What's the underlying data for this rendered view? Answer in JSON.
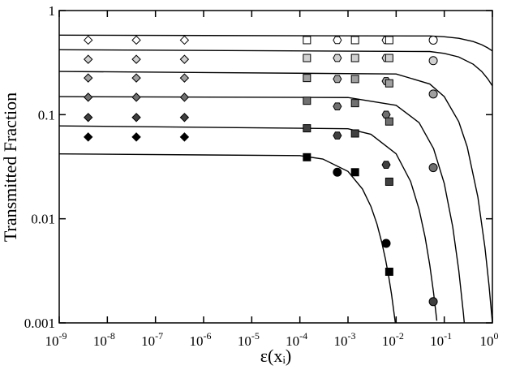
{
  "chart_data": {
    "type": "scatter",
    "x_label": "ε(xᵢ)",
    "y_label": "Transmitted Fraction",
    "log_x": true,
    "log_y": true,
    "xlim": [
      1e-09,
      1
    ],
    "ylim": [
      0.001,
      1
    ],
    "xticks": [
      {
        "value": 1e-09,
        "label": "10",
        "exponent": "-9"
      },
      {
        "value": 1e-08,
        "label": "10",
        "exponent": "-8"
      },
      {
        "value": 1e-07,
        "label": "10",
        "exponent": "-7"
      },
      {
        "value": 1e-06,
        "label": "10",
        "exponent": "-6"
      },
      {
        "value": 1e-05,
        "label": "10",
        "exponent": "-5"
      },
      {
        "value": 0.0001,
        "label": "10",
        "exponent": "-4"
      },
      {
        "value": 0.001,
        "label": "10",
        "exponent": "-3"
      },
      {
        "value": 0.01,
        "label": "10",
        "exponent": "-2"
      },
      {
        "value": 0.1,
        "label": "10",
        "exponent": "-1"
      },
      {
        "value": 1,
        "label": "10",
        "exponent": "0"
      }
    ],
    "yticks": [
      0.001,
      0.01,
      0.1,
      1
    ],
    "series": [
      {
        "color": "#ffffff",
        "x": [
          4e-09,
          4e-08,
          4e-07,
          0.00014,
          0.0006,
          0.0014,
          0.0062,
          0.0072,
          0.059
        ],
        "values": [
          0.52,
          0.52,
          0.52,
          0.52,
          0.52,
          0.52,
          0.52,
          0.52,
          0.52
        ],
        "markers": [
          "diamond",
          "diamond",
          "diamond",
          "square",
          "hexagon",
          "square",
          "hexagon",
          "square",
          "circle"
        ]
      },
      {
        "color": "#d0d0d0",
        "x": [
          4e-09,
          4e-08,
          4e-07,
          0.00014,
          0.0006,
          0.0014,
          0.0062,
          0.0072,
          0.059
        ],
        "values": [
          0.34,
          0.34,
          0.34,
          0.35,
          0.35,
          0.35,
          0.35,
          0.35,
          0.33
        ],
        "markers": [
          "diamond",
          "diamond",
          "diamond",
          "square",
          "hexagon",
          "square",
          "hexagon",
          "square",
          "circle"
        ]
      },
      {
        "color": "#a0a0a0",
        "x": [
          4e-09,
          4e-08,
          4e-07,
          0.00014,
          0.0006,
          0.0014,
          0.0062,
          0.0072,
          0.059
        ],
        "values": [
          0.225,
          0.225,
          0.225,
          0.225,
          0.22,
          0.22,
          0.21,
          0.2,
          0.158
        ],
        "markers": [
          "diamond",
          "diamond",
          "diamond",
          "square",
          "hexagon",
          "square",
          "hexagon",
          "square",
          "circle"
        ]
      },
      {
        "color": "#707070",
        "x": [
          4e-09,
          4e-08,
          4e-07,
          0.00014,
          0.0006,
          0.0014,
          0.0062,
          0.0072,
          0.059
        ],
        "values": [
          0.147,
          0.147,
          0.147,
          0.136,
          0.12,
          0.129,
          0.1,
          0.086,
          0.031
        ],
        "markers": [
          "diamond",
          "diamond",
          "diamond",
          "square",
          "hexagon",
          "square",
          "hexagon",
          "square",
          "circle"
        ]
      },
      {
        "color": "#404040",
        "x": [
          4e-09,
          4e-08,
          4e-07,
          0.00014,
          0.0006,
          0.0014,
          0.0062,
          0.0072,
          0.059
        ],
        "values": [
          0.094,
          0.094,
          0.094,
          0.074,
          0.063,
          0.066,
          0.033,
          0.0227,
          0.0016
        ],
        "markers": [
          "diamond",
          "diamond",
          "diamond",
          "square",
          "hexagon",
          "square",
          "hexagon",
          "square",
          "circle"
        ]
      },
      {
        "color": "#000000",
        "x": [
          4e-09,
          4e-08,
          4e-07,
          0.00014,
          0.0006,
          0.0014,
          0.0062,
          0.0072
        ],
        "values": [
          0.061,
          0.061,
          0.061,
          0.039,
          0.028,
          0.028,
          0.0058,
          0.0031
        ],
        "markers": [
          "diamond",
          "diamond",
          "diamond",
          "square",
          "circle",
          "square",
          "circle",
          "square"
        ]
      }
    ],
    "fits": [
      {
        "color": "#000000",
        "x": [
          1e-09,
          0.0001,
          0.0003,
          0.001,
          0.002,
          0.003,
          0.004,
          0.005,
          0.006,
          0.007,
          0.008,
          0.0096
        ],
        "values": [
          0.042,
          0.0404,
          0.0375,
          0.0285,
          0.0193,
          0.0131,
          0.0089,
          0.006,
          0.0041,
          0.0028,
          0.0019,
          0.00101
        ]
      },
      {
        "color": "#000000",
        "x": [
          1e-09,
          0.001,
          0.003,
          0.01,
          0.02,
          0.03,
          0.04,
          0.05,
          0.06,
          0.07
        ],
        "values": [
          0.078,
          0.0733,
          0.0648,
          0.0421,
          0.0228,
          0.0123,
          0.00664,
          0.00359,
          0.00194,
          0.00105
        ]
      },
      {
        "color": "#000000",
        "x": [
          1e-09,
          0.001,
          0.01,
          0.03,
          0.06,
          0.1,
          0.15,
          0.2,
          0.25,
          0.26
        ],
        "values": [
          0.149,
          0.146,
          0.123,
          0.0838,
          0.0471,
          0.0218,
          0.00836,
          0.0032,
          0.00123,
          0.00101
        ]
      },
      {
        "color": "#000000",
        "x": [
          1e-09,
          0.01,
          0.05,
          0.1,
          0.2,
          0.3,
          0.5,
          0.7,
          0.85,
          1
        ],
        "values": [
          0.26,
          0.246,
          0.197,
          0.149,
          0.0855,
          0.049,
          0.0161,
          0.0053,
          0.0023,
          0.001
        ]
      },
      {
        "color": "#000000",
        "x": [
          1e-09,
          0.05,
          0.1,
          0.2,
          0.4,
          0.6,
          0.8,
          1
        ],
        "values": [
          0.42,
          0.404,
          0.388,
          0.358,
          0.305,
          0.26,
          0.221,
          0.189
        ]
      },
      {
        "color": "#000000",
        "x": [
          1e-09,
          0.05,
          0.1,
          0.2,
          0.4,
          0.6,
          0.8,
          1
        ],
        "values": [
          0.58,
          0.57,
          0.56,
          0.541,
          0.504,
          0.47,
          0.438,
          0.409
        ]
      }
    ]
  }
}
